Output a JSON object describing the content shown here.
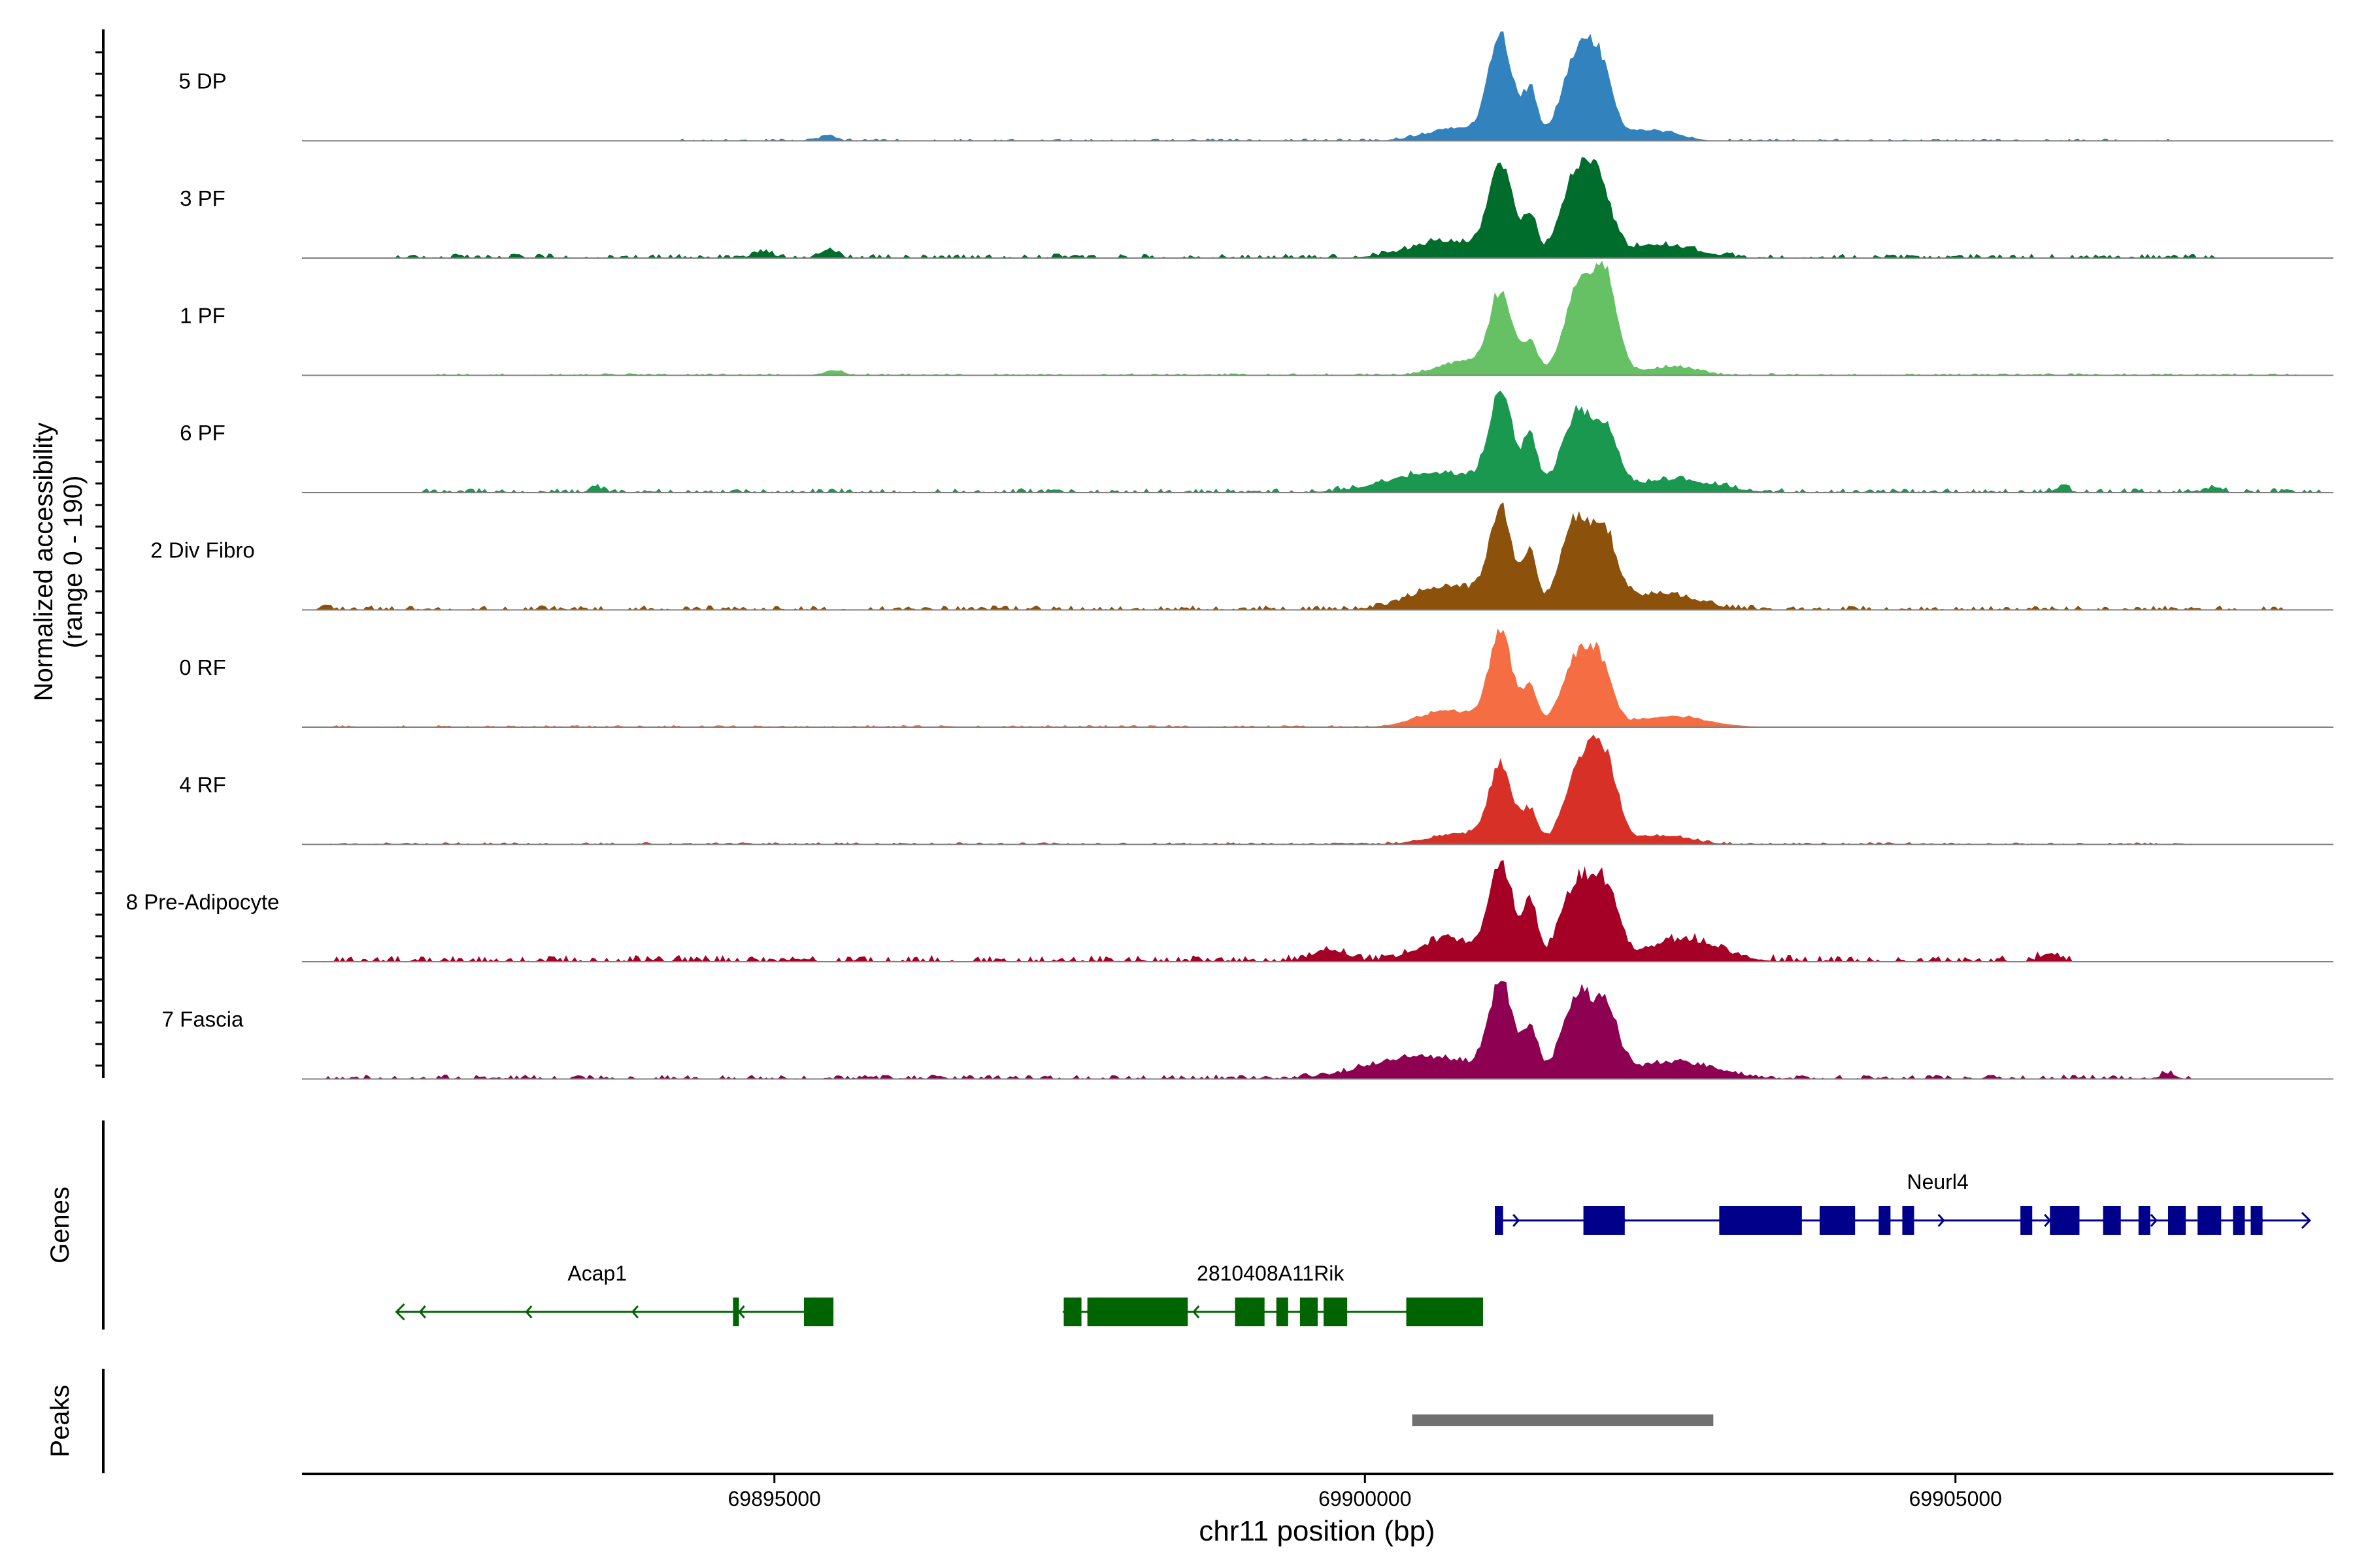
{
  "chart_data": {
    "type": "area",
    "title": "",
    "xlabel": "chr11 position (bp)",
    "ylabel": "Normalized accessibility",
    "ylabel_sub": "(range 0 - 190)",
    "yrange": [
      0,
      190
    ],
    "xlim": [
      69891000,
      69908200
    ],
    "x_ticks": [
      69895000,
      69900000,
      69905000
    ],
    "x_tick_labels": [
      "69895000",
      "69900000",
      "69905000"
    ],
    "tracks": [
      {
        "name": "5 DP",
        "color": "#3182bd",
        "peaks": [
          [
            69901150,
            0.95,
            100
          ],
          [
            69901400,
            0.45,
            60
          ],
          [
            69901800,
            0.8,
            130
          ],
          [
            69902000,
            0.55,
            100
          ],
          [
            69900800,
            0.12,
            260
          ],
          [
            69902400,
            0.1,
            220
          ],
          [
            69895450,
            0.05,
            60
          ]
        ],
        "noise": {
          "start": 69894200,
          "end": 69906800,
          "level": 0.02
        }
      },
      {
        "name": "3 PF",
        "color": "#006d2c",
        "peaks": [
          [
            69901150,
            0.85,
            100
          ],
          [
            69901400,
            0.35,
            60
          ],
          [
            69901800,
            0.8,
            130
          ],
          [
            69902000,
            0.5,
            100
          ],
          [
            69900700,
            0.15,
            320
          ],
          [
            69902500,
            0.12,
            300
          ],
          [
            69894900,
            0.06,
            80
          ],
          [
            69895450,
            0.07,
            70
          ]
        ],
        "noise": {
          "start": 69891800,
          "end": 69907200,
          "level": 0.04
        }
      },
      {
        "name": "1 PF",
        "color": "#66c164",
        "peaks": [
          [
            69901150,
            0.75,
            100
          ],
          [
            69901400,
            0.3,
            60
          ],
          [
            69901850,
            0.95,
            140
          ],
          [
            69902050,
            0.65,
            100
          ],
          [
            69900800,
            0.12,
            200
          ],
          [
            69902600,
            0.08,
            200
          ],
          [
            69895500,
            0.04,
            80
          ]
        ],
        "noise": {
          "start": 69892100,
          "end": 69907900,
          "level": 0.02
        }
      },
      {
        "name": "6 PF",
        "color": "#1a9850",
        "peaks": [
          [
            69901150,
            0.85,
            100
          ],
          [
            69901400,
            0.48,
            60
          ],
          [
            69901800,
            0.72,
            130
          ],
          [
            69902050,
            0.45,
            100
          ],
          [
            69900600,
            0.18,
            400
          ],
          [
            69902600,
            0.12,
            350
          ],
          [
            69905900,
            0.05,
            60
          ],
          [
            69907200,
            0.05,
            60
          ],
          [
            69893500,
            0.04,
            60
          ]
        ],
        "noise": {
          "start": 69892000,
          "end": 69908100,
          "level": 0.04
        }
      },
      {
        "name": "2 Div Fibro",
        "color": "#8c510a",
        "peaks": [
          [
            69901150,
            0.85,
            100
          ],
          [
            69901400,
            0.48,
            60
          ],
          [
            69901800,
            0.85,
            130
          ],
          [
            69902050,
            0.55,
            100
          ],
          [
            69900700,
            0.22,
            300
          ],
          [
            69902500,
            0.15,
            300
          ],
          [
            69891200,
            0.05,
            40
          ]
        ],
        "noise": {
          "start": 69891200,
          "end": 69907800,
          "level": 0.04
        }
      },
      {
        "name": "0 RF",
        "color": "#f46d43",
        "peaks": [
          [
            69901150,
            0.85,
            100
          ],
          [
            69901400,
            0.35,
            60
          ],
          [
            69901800,
            0.65,
            130
          ],
          [
            69902000,
            0.45,
            100
          ],
          [
            69900700,
            0.15,
            250
          ],
          [
            69902600,
            0.1,
            300
          ]
        ],
        "noise": {
          "start": 69891200,
          "end": 69902900,
          "level": 0.02
        }
      },
      {
        "name": "4 RF",
        "color": "#d73027",
        "peaks": [
          [
            69901150,
            0.7,
            100
          ],
          [
            69901400,
            0.3,
            60
          ],
          [
            69901850,
            0.8,
            140
          ],
          [
            69902050,
            0.55,
            100
          ],
          [
            69900800,
            0.1,
            250
          ],
          [
            69902500,
            0.08,
            250
          ]
        ],
        "noise": {
          "start": 69891200,
          "end": 69907000,
          "level": 0.02
        }
      },
      {
        "name": "8 Pre-Adipocyte",
        "color": "#a50026",
        "peaks": [
          [
            69901150,
            0.85,
            100
          ],
          [
            69901400,
            0.55,
            60
          ],
          [
            69901800,
            0.75,
            130
          ],
          [
            69902050,
            0.6,
            100
          ],
          [
            69900700,
            0.2,
            250
          ],
          [
            69902700,
            0.2,
            300
          ],
          [
            69899700,
            0.1,
            150
          ],
          [
            69905800,
            0.08,
            80
          ]
        ],
        "noise": {
          "start": 69891200,
          "end": 69906000,
          "level": 0.06
        }
      },
      {
        "name": "7 Fascia",
        "color": "#8e0152",
        "peaks": [
          [
            69901150,
            0.85,
            100
          ],
          [
            69901400,
            0.45,
            60
          ],
          [
            69901800,
            0.75,
            130
          ],
          [
            69902050,
            0.55,
            100
          ],
          [
            69900500,
            0.2,
            450
          ],
          [
            69902600,
            0.15,
            350
          ],
          [
            69906800,
            0.05,
            60
          ]
        ],
        "noise": {
          "start": 69891200,
          "end": 69907000,
          "level": 0.04
        }
      }
    ],
    "genes": {
      "label": "Genes",
      "items": [
        {
          "name": "Neurl4",
          "strand": "+",
          "color": "#00008b",
          "start": 69901100,
          "end": 69908000,
          "exons": [
            [
              69901100,
              69901170
            ],
            [
              69901850,
              69902200
            ],
            [
              69903000,
              69903700
            ],
            [
              69903850,
              69904150
            ],
            [
              69904350,
              69904450
            ],
            [
              69904550,
              69904650
            ],
            [
              69905550,
              69905650
            ],
            [
              69905800,
              69906050
            ],
            [
              69906250,
              69906400
            ],
            [
              69906550,
              69906650
            ],
            [
              69906800,
              69906950
            ],
            [
              69907050,
              69907250
            ],
            [
              69907350,
              69907450
            ],
            [
              69907500,
              69907600
            ]
          ]
        },
        {
          "name": "Acap1",
          "strand": "-",
          "color": "#006400",
          "start": 69891800,
          "end": 69895500,
          "exons": [
            [
              69894650,
              69894700
            ],
            [
              69895250,
              69895500
            ]
          ]
        },
        {
          "name": "2810408A11Rik",
          "strand": "-",
          "color": "#006400",
          "start": 69897450,
          "end": 69901000,
          "exons": [
            [
              69897450,
              69897600
            ],
            [
              69897650,
              69898500
            ],
            [
              69898900,
              69899150
            ],
            [
              69899250,
              69899350
            ],
            [
              69899450,
              69899600
            ],
            [
              69899650,
              69899850
            ],
            [
              69900350,
              69901000
            ]
          ]
        }
      ]
    },
    "peaks_track": {
      "label": "Peaks",
      "color": "#707070",
      "regions": [
        [
          69900400,
          69902950
        ]
      ]
    }
  }
}
